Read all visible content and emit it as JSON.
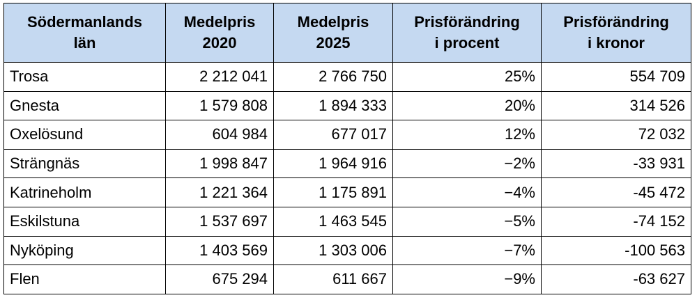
{
  "table": {
    "header": [
      [
        "Södermanlands",
        "län"
      ],
      [
        "Medelpris",
        "2020"
      ],
      [
        "Medelpris",
        "2025"
      ],
      [
        "Prisförändring",
        "i procent"
      ],
      [
        "Prisförändring",
        "i kronor"
      ]
    ],
    "rows": [
      [
        "Trosa",
        "2 212 041",
        "2 766 750",
        "25%",
        "554 709"
      ],
      [
        "Gnesta",
        "1 579 808",
        "1 894 333",
        "20%",
        "314 526"
      ],
      [
        "Oxelösund",
        "604 984",
        "677 017",
        "12%",
        "72 032"
      ],
      [
        "Strängnäs",
        "1 998 847",
        "1 964 916",
        "−2%",
        "-33 931"
      ],
      [
        "Katrineholm",
        "1 221 364",
        "1 175 891",
        "−4%",
        "-45 472"
      ],
      [
        "Eskilstuna",
        "1 537 697",
        "1 463 545",
        "−5%",
        "-74 152"
      ],
      [
        "Nyköping",
        "1 403 569",
        "1 303 006",
        "−7%",
        "-100 563"
      ],
      [
        "Flen",
        "675 294",
        "611 667",
        "−9%",
        "-63 627"
      ]
    ]
  }
}
